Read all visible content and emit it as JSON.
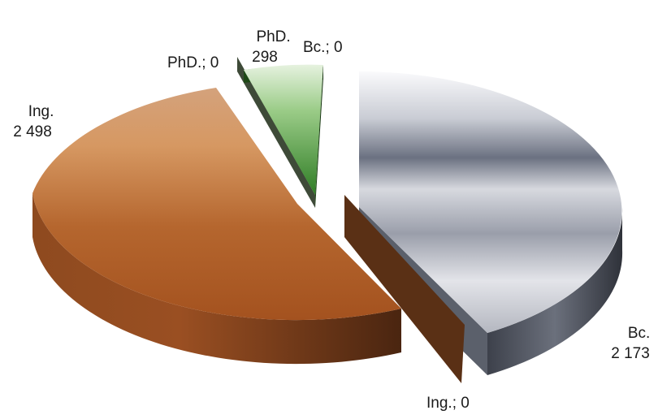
{
  "chart_data": {
    "type": "pie",
    "title": "",
    "series": [
      {
        "values": [
          {
            "category": "Bc.",
            "value": 2173,
            "display": "2 173"
          },
          {
            "category": "Ing.",
            "value": 2498,
            "display": "2 498"
          },
          {
            "category": "PhD.",
            "value": 298,
            "display": "298"
          }
        ]
      },
      {
        "values": [
          {
            "category": "Bc.",
            "value": 0,
            "display": "Bc.; 0"
          },
          {
            "category": "Ing.",
            "value": 0,
            "display": "Ing.; 0"
          },
          {
            "category": "PhD.",
            "value": 0,
            "display": "PhD.; 0"
          }
        ]
      }
    ],
    "labels": {
      "bc_name": "Bc.",
      "bc_value": "2 173",
      "ing_name": "Ing.",
      "ing_value": "2 498",
      "phd_name": "PhD.",
      "phd_value": "298",
      "bc_zero": "Bc.; 0",
      "ing_zero": "Ing.; 0",
      "phd_zero": "PhD.; 0"
    },
    "legend": "none",
    "style": "3d-exploded",
    "colors": {
      "Bc.": "#8a8f9c",
      "Ing.": "#b0622c",
      "PhD.": "#5fa34a"
    }
  }
}
